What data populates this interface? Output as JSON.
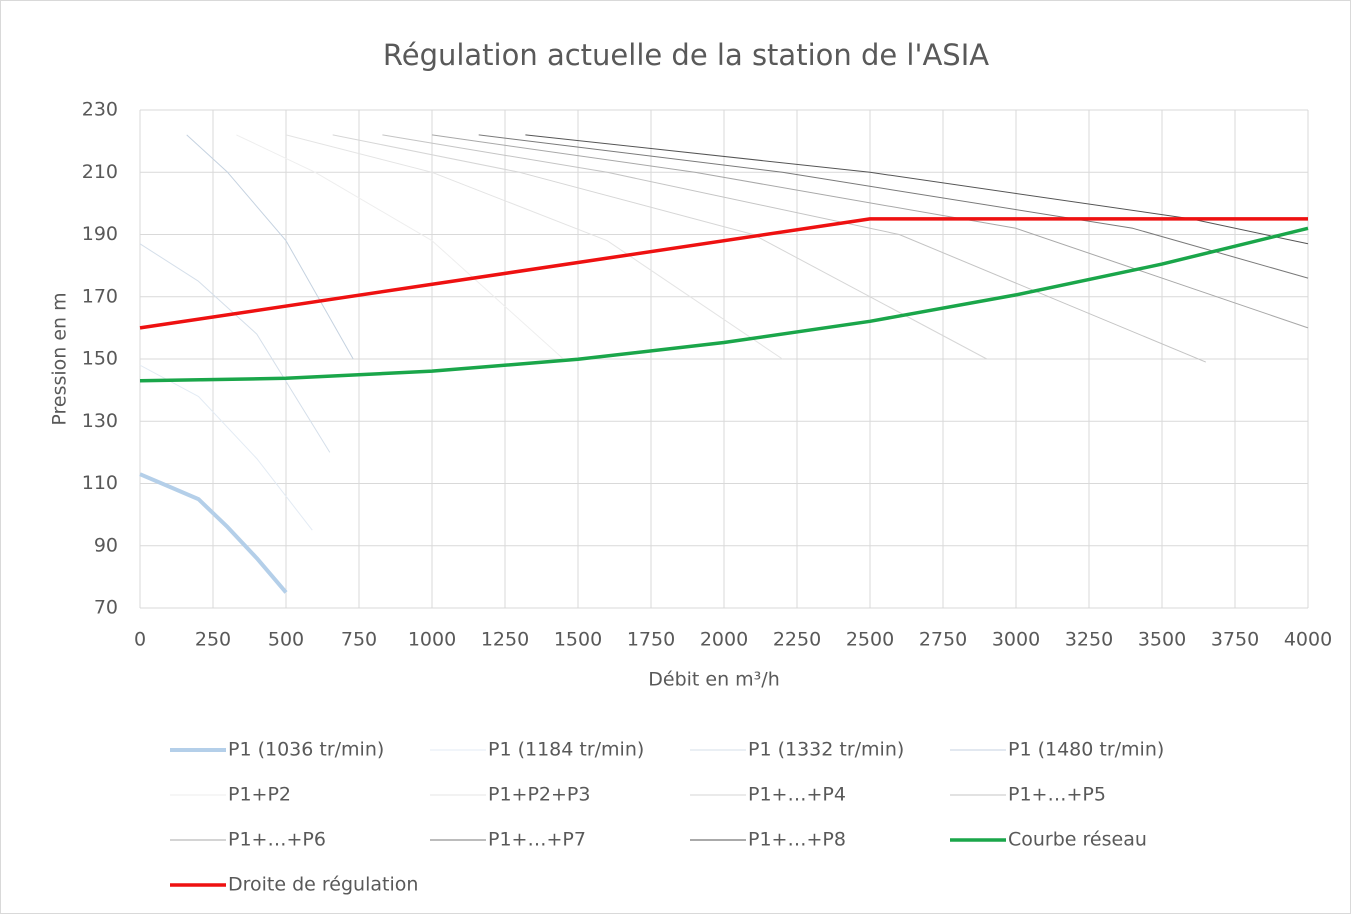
{
  "chart_data": {
    "type": "line",
    "title": "Régulation actuelle de la station de l'ASIA",
    "x_label": "Débit en m³/h",
    "y_label": "Pression en m",
    "xlim": [
      0,
      4000
    ],
    "xticks": [
      0,
      250,
      500,
      750,
      1000,
      1250,
      1500,
      1750,
      2000,
      2250,
      2500,
      2750,
      3000,
      3250,
      3500,
      3750,
      4000
    ],
    "ylim": [
      70,
      230
    ],
    "yticks": [
      70,
      90,
      110,
      130,
      150,
      170,
      190,
      210,
      230
    ],
    "grid": true,
    "legend": "bottom",
    "series": [
      {
        "name": "P1 (1036 tr/min)",
        "color": "#b4cfe9",
        "width": 4,
        "x": [
          0,
          100,
          200,
          300,
          400,
          500
        ],
        "values": [
          113,
          109,
          105,
          96,
          86,
          75
        ]
      },
      {
        "name": "P1 (1184 tr/min)",
        "color": "#e3ebf4",
        "width": 1,
        "x": [
          0,
          200,
          400,
          590
        ],
        "values": [
          148,
          138,
          118,
          95
        ]
      },
      {
        "name": "P1 (1332 tr/min)",
        "color": "#d5dfea",
        "width": 1,
        "x": [
          0,
          200,
          400,
          650
        ],
        "values": [
          187,
          175,
          158,
          120
        ]
      },
      {
        "name": "P1 (1480 tr/min)",
        "color": "#c5d2e0",
        "width": 1,
        "x": [
          160,
          300,
          500,
          730
        ],
        "values": [
          222,
          210,
          188,
          150
        ]
      },
      {
        "name": "P1+P2",
        "color": "#eeeeee",
        "width": 1,
        "x": [
          330,
          600,
          1000,
          1450
        ],
        "values": [
          222,
          210,
          188,
          150
        ]
      },
      {
        "name": "P1+P2+P3",
        "color": "#e4e4e4",
        "width": 1,
        "x": [
          500,
          1000,
          1600,
          2200
        ],
        "values": [
          222,
          210,
          188,
          150
        ]
      },
      {
        "name": "P1+…+P4",
        "color": "#d6d6d6",
        "width": 1,
        "x": [
          660,
          1300,
          2100,
          2900
        ],
        "values": [
          222,
          210,
          190,
          150
        ]
      },
      {
        "name": "P1+…+P5",
        "color": "#c4c4c4",
        "width": 1,
        "x": [
          830,
          1600,
          2600,
          3650
        ],
        "values": [
          222,
          210,
          190,
          149
        ]
      },
      {
        "name": "P1+…+P6",
        "color": "#a8a8a8",
        "width": 1,
        "x": [
          1000,
          1900,
          3000,
          4000
        ],
        "values": [
          222,
          210,
          192,
          160
        ]
      },
      {
        "name": "P1+…+P7",
        "color": "#7a7a7a",
        "width": 1,
        "x": [
          1160,
          2200,
          3400,
          4000
        ],
        "values": [
          222,
          210,
          192,
          176
        ]
      },
      {
        "name": "P1+…+P8",
        "color": "#555555",
        "width": 1,
        "x": [
          1320,
          2500,
          3600,
          4000
        ],
        "values": [
          222,
          210,
          195,
          187
        ]
      },
      {
        "name": "Courbe réseau",
        "color": "#1aa64a",
        "width": 3.5,
        "x": [
          0,
          500,
          1000,
          1500,
          2000,
          2500,
          3000,
          3500,
          4000
        ],
        "values": [
          143,
          143.8,
          146.1,
          149.9,
          155.3,
          162.1,
          170.6,
          180.5,
          192
        ]
      },
      {
        "name": "Droite de régulation",
        "color": "#ee1111",
        "width": 3.5,
        "x": [
          0,
          2500,
          4000
        ],
        "values": [
          160,
          195,
          195
        ]
      }
    ]
  }
}
